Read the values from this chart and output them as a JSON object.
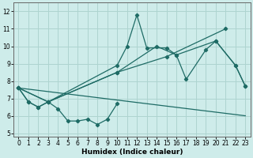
{
  "xlabel": "Humidex (Indice chaleur)",
  "xlim": [
    -0.5,
    23.5
  ],
  "ylim": [
    4.8,
    12.5
  ],
  "yticks": [
    5,
    6,
    7,
    8,
    9,
    10,
    11,
    12
  ],
  "xticks": [
    0,
    1,
    2,
    3,
    4,
    5,
    6,
    7,
    8,
    9,
    10,
    11,
    12,
    13,
    14,
    15,
    16,
    17,
    18,
    19,
    20,
    21,
    22,
    23
  ],
  "bg_color": "#ceecea",
  "grid_color": "#aed4d0",
  "line_color": "#1e6b65",
  "bottom_line_x": [
    0,
    1,
    2,
    3,
    4,
    5,
    6,
    7,
    8,
    9,
    10
  ],
  "bottom_line_y": [
    7.6,
    6.8,
    6.5,
    6.8,
    6.4,
    5.7,
    5.7,
    5.8,
    5.5,
    5.8,
    6.7
  ],
  "main_line_x": [
    0,
    1,
    2,
    3,
    10,
    11,
    12,
    13,
    15,
    16,
    17,
    19,
    20,
    22,
    23
  ],
  "main_line_y": [
    7.6,
    6.8,
    6.5,
    6.8,
    8.9,
    10.0,
    11.8,
    9.9,
    9.9,
    9.5,
    8.1,
    9.8,
    10.3,
    8.9,
    7.7
  ],
  "trend1_x": [
    0,
    3,
    10,
    15,
    21
  ],
  "trend1_y": [
    7.6,
    6.8,
    8.5,
    9.4,
    11.0
  ],
  "trend2_x": [
    0,
    3,
    10,
    14,
    16,
    20,
    22,
    23
  ],
  "trend2_y": [
    7.6,
    6.8,
    8.5,
    10.0,
    9.5,
    10.3,
    8.9,
    7.7
  ],
  "flat_line_x": [
    0,
    23
  ],
  "flat_line_y": [
    7.6,
    6.0
  ]
}
